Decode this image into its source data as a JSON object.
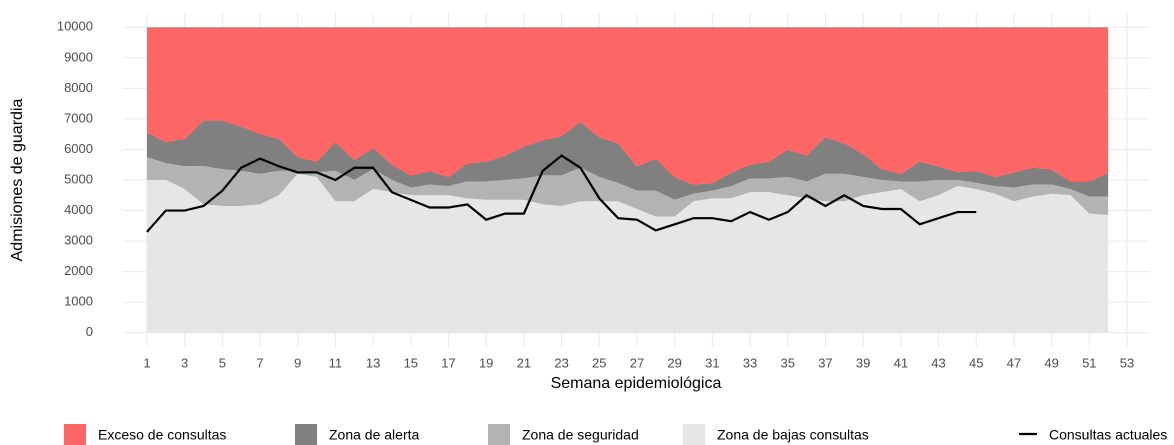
{
  "chart_data": {
    "type": "area",
    "x_label": "Semana epidemiológica",
    "y_label": "Admisiones de guardia",
    "x": [
      1,
      2,
      3,
      4,
      5,
      6,
      7,
      8,
      9,
      10,
      11,
      12,
      13,
      14,
      15,
      16,
      17,
      18,
      19,
      20,
      21,
      22,
      23,
      24,
      25,
      26,
      27,
      28,
      29,
      30,
      31,
      32,
      33,
      34,
      35,
      36,
      37,
      38,
      39,
      40,
      41,
      42,
      43,
      44,
      45,
      46,
      47,
      48,
      49,
      50,
      51,
      52
    ],
    "xlim": [
      -0.27,
      54.22
    ],
    "xticks": [
      1,
      3,
      5,
      7,
      9,
      11,
      13,
      15,
      17,
      19,
      21,
      23,
      25,
      27,
      29,
      31,
      33,
      35,
      37,
      39,
      41,
      43,
      45,
      47,
      49,
      51,
      53
    ],
    "ylim": [
      -500,
      10500
    ],
    "yticks": [
      0,
      1000,
      2000,
      3000,
      4000,
      5000,
      6000,
      7000,
      8000,
      9000,
      10000
    ],
    "grid": true,
    "legend": "bottom",
    "series": [
      {
        "name": "Exceso de consultas",
        "color": "#ff6666",
        "values": [
          10000,
          10000,
          10000,
          10000,
          10000,
          10000,
          10000,
          10000,
          10000,
          10000,
          10000,
          10000,
          10000,
          10000,
          10000,
          10000,
          10000,
          10000,
          10000,
          10000,
          10000,
          10000,
          10000,
          10000,
          10000,
          10000,
          10000,
          10000,
          10000,
          10000,
          10000,
          10000,
          10000,
          10000,
          10000,
          10000,
          10000,
          10000,
          10000,
          10000,
          10000,
          10000,
          10000,
          10000,
          10000,
          10000,
          10000,
          10000,
          10000,
          10000,
          10000,
          10000
        ]
      },
      {
        "name": "Zona de alerta",
        "color": "#808080",
        "values": [
          6550,
          6250,
          6350,
          6950,
          6950,
          6750,
          6500,
          6350,
          5750,
          5600,
          6250,
          5650,
          6050,
          5500,
          5150,
          5300,
          5100,
          5550,
          5600,
          5800,
          6100,
          6300,
          6450,
          6900,
          6400,
          6200,
          5450,
          5700,
          5100,
          4850,
          4900,
          5250,
          5500,
          5600,
          6000,
          5800,
          6400,
          6200,
          5850,
          5350,
          5200,
          5600,
          5450,
          5250,
          5300,
          5100,
          5250,
          5400,
          5350,
          4950,
          4950,
          5250
        ]
      },
      {
        "name": "Zona de seguridad",
        "color": "#b3b3b3",
        "values": [
          5750,
          5550,
          5450,
          5450,
          5350,
          5300,
          5200,
          5300,
          5300,
          5250,
          5300,
          5000,
          5350,
          5000,
          4750,
          4850,
          4800,
          4950,
          4950,
          5000,
          5050,
          5150,
          5150,
          5400,
          5100,
          4900,
          4650,
          4650,
          4350,
          4550,
          4650,
          4800,
          5050,
          5050,
          5100,
          4950,
          5200,
          5200,
          5100,
          5000,
          4950,
          4950,
          5000,
          5000,
          4900,
          4800,
          4750,
          4850,
          4850,
          4700,
          4450,
          4450
        ]
      },
      {
        "name": "Zona de bajas consultas",
        "color": "#e6e6e6",
        "values": [
          5000,
          5000,
          4700,
          4200,
          4150,
          4150,
          4200,
          4500,
          5200,
          5100,
          4300,
          4300,
          4700,
          4600,
          4500,
          4500,
          4500,
          4400,
          4350,
          4350,
          4350,
          4200,
          4150,
          4300,
          4300,
          4300,
          4050,
          3800,
          3800,
          4300,
          4400,
          4400,
          4600,
          4600,
          4500,
          4400,
          4300,
          4300,
          4500,
          4600,
          4700,
          4300,
          4500,
          4800,
          4700,
          4550,
          4300,
          4450,
          4550,
          4500,
          3900,
          3850
        ]
      },
      {
        "name": "Consultas actuales",
        "type": "line",
        "color": "#000000",
        "values": [
          3300,
          4000,
          4000,
          4150,
          4650,
          5400,
          5700,
          5450,
          5250,
          5250,
          5000,
          5400,
          5400,
          4600,
          4350,
          4100,
          4100,
          4200,
          3700,
          3900,
          3900,
          5300,
          5800,
          5400,
          4400,
          3750,
          3700,
          3350,
          3550,
          3750,
          3750,
          3650,
          3950,
          3700,
          3950,
          4500,
          4150,
          4500,
          4150,
          4050,
          4050,
          3550,
          3750,
          3950,
          3950,
          null,
          null,
          null,
          null,
          null,
          null,
          null
        ]
      }
    ]
  }
}
